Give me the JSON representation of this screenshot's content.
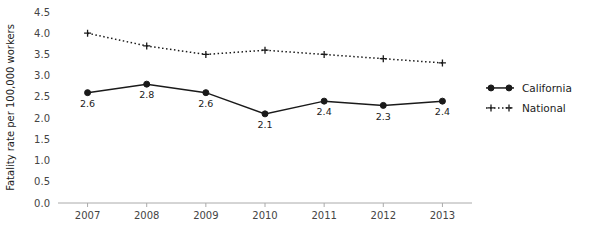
{
  "chart_data": {
    "type": "line",
    "ylabel": "Fatality rate per 100,000 workers",
    "x": [
      2007,
      2008,
      2009,
      2010,
      2011,
      2012,
      2013
    ],
    "xlim": [
      2006.5,
      2013.5
    ],
    "xticks": [
      2007,
      2008,
      2009,
      2010,
      2011,
      2012,
      2013
    ],
    "ylim": [
      0,
      4.5
    ],
    "yticks": [
      {
        "value": 0,
        "label": "0.0"
      },
      0.5,
      {
        "value": 1,
        "label": "1.0"
      },
      1.5,
      {
        "value": 2,
        "label": "2.0"
      },
      2.5,
      {
        "value": 3,
        "label": "3.0"
      },
      3.5,
      {
        "value": 4,
        "label": "4.0"
      },
      4.5
    ],
    "grid": false,
    "legend": "right",
    "series": [
      {
        "name": "California",
        "color": "#1a1a1a",
        "marker": "circle",
        "line_style": "solid",
        "data_labels": true,
        "values": [
          2.6,
          2.8,
          2.6,
          2.1,
          2.4,
          2.3,
          2.4
        ]
      },
      {
        "name": "National",
        "color": "#1a1a1a",
        "marker": "plus",
        "line_style": "dotted",
        "values": [
          4.0,
          3.7,
          3.5,
          3.6,
          3.5,
          3.4,
          3.3
        ]
      }
    ]
  }
}
